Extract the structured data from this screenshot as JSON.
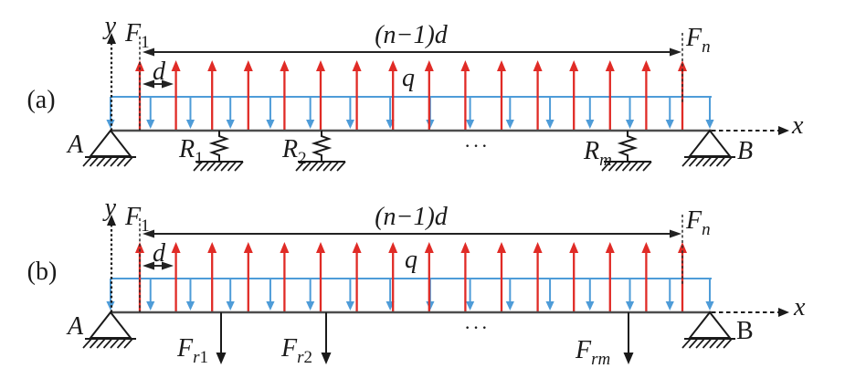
{
  "figure": {
    "background": "#ffffff",
    "colors": {
      "red": "#e02b26",
      "blue": "#4e9cd8",
      "ink": "#1a1a1a",
      "beam": "#4d4d4d"
    },
    "diagrams": [
      {
        "caption": "(a)",
        "y_axis_label": "y",
        "x_axis_label": "x",
        "first_force_label": {
          "base": "F",
          "sub": "1"
        },
        "last_force_label": {
          "base": "F",
          "sub": "n"
        },
        "span_label": "(n−1)d",
        "pitch_label": "d",
        "distributed_load_label": "q",
        "left_support_label": "A",
        "right_support_label": "B",
        "right_support_label_italic": true,
        "ellipsis": "···",
        "upward_force_count": 16,
        "downward_load_arrow_count": 16,
        "reaction_type": "spring",
        "reaction_labels": [
          {
            "base": "R",
            "sub": "1"
          },
          {
            "base": "R",
            "sub": "2"
          },
          {
            "base": "R",
            "sub": "m"
          }
        ]
      },
      {
        "caption": "(b)",
        "y_axis_label": "y",
        "x_axis_label": "x",
        "first_force_label": {
          "base": "F",
          "sub": "1"
        },
        "last_force_label": {
          "base": "F",
          "sub": "n"
        },
        "span_label": "(n−1)d",
        "pitch_label": "d",
        "distributed_load_label": "q",
        "left_support_label": "A",
        "right_support_label": "B",
        "right_support_label_italic": false,
        "ellipsis": "···",
        "upward_force_count": 16,
        "downward_load_arrow_count": 16,
        "reaction_type": "force",
        "reaction_labels": [
          {
            "base": "F",
            "sub": "r1"
          },
          {
            "base": "F",
            "sub": "r2"
          },
          {
            "base": "F",
            "sub": "rm"
          }
        ]
      }
    ]
  }
}
